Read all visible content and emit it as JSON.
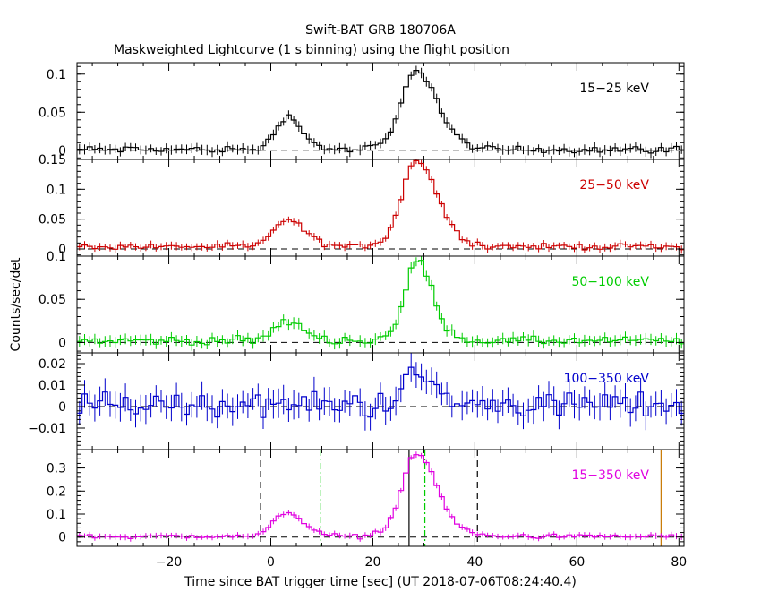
{
  "title": "Swift-BAT GRB 180706A",
  "subtitle": "Maskweighted Lightcurve (1 s binning) using the flight position",
  "colors": {
    "black": "#000000",
    "red": "#cc0000",
    "green": "#00cc00",
    "blue": "#0000cc",
    "magenta": "#e000e0",
    "orange": "#c87800"
  },
  "chart_data": {
    "type": "line",
    "xlabel": "Time since BAT trigger time [sec] (UT 2018-07-06T08:24:40.4)",
    "ylabel": "Counts/sec/det",
    "xlim": [
      -38,
      81
    ],
    "x_ticks": [
      -20,
      0,
      20,
      40,
      60,
      80
    ],
    "x_tick_labels": [
      "−20",
      "0",
      "20",
      "40",
      "60",
      "80"
    ],
    "panels": [
      {
        "name": "15−25 keV",
        "color": "#000000",
        "ylim": [
          -0.012,
          0.115
        ],
        "y_ticks": [
          0,
          0.05,
          0.1
        ],
        "y_tick_labels": [
          "0",
          "0.05",
          "0.1"
        ],
        "peaks": [
          {
            "center": 3,
            "width": 3.5,
            "height": 0.043
          },
          {
            "center": 28.5,
            "width": 4.5,
            "height": 0.1
          }
        ],
        "baseline": 0.001,
        "noise": 0.004,
        "err": 0.006,
        "pulse2_start": 20,
        "pulse2_end": 40
      },
      {
        "name": "25−50 keV",
        "color": "#cc0000",
        "ylim": [
          -0.012,
          0.15
        ],
        "y_ticks": [
          0,
          0.05,
          0.1,
          0.15
        ],
        "y_tick_labels": [
          "0",
          "0.05",
          "0.1",
          "0.15"
        ],
        "peaks": [
          {
            "center": 3,
            "width": 4,
            "height": 0.045
          },
          {
            "center": 28.5,
            "width": 4.5,
            "height": 0.138
          }
        ],
        "baseline": 0.004,
        "noise": 0.004,
        "err": 0.006,
        "pulse2_start": 20,
        "pulse2_end": 42
      },
      {
        "name": "50−100 keV",
        "color": "#00cc00",
        "ylim": [
          -0.012,
          0.1
        ],
        "y_ticks": [
          0,
          0.05,
          0.1
        ],
        "y_tick_labels": [
          "0",
          "0.05",
          "0.1"
        ],
        "peaks": [
          {
            "center": 3,
            "width": 4,
            "height": 0.022
          },
          {
            "center": 28.5,
            "width": 3.5,
            "height": 0.088
          }
        ],
        "baseline": 0.002,
        "noise": 0.004,
        "err": 0.006,
        "pulse2_start": 21,
        "pulse2_end": 38
      },
      {
        "name": "100−350 keV",
        "color": "#0000cc",
        "ylim": [
          -0.02,
          0.025
        ],
        "y_ticks": [
          -0.01,
          0,
          0.01,
          0.02
        ],
        "y_tick_labels": [
          "−0.01",
          "0",
          "0.01",
          "0.02"
        ],
        "peaks": [
          {
            "center": 28.5,
            "width": 3.5,
            "height": 0.014
          }
        ],
        "baseline": 0.001,
        "noise": 0.005,
        "err": 0.006,
        "pulse2_start": 22,
        "pulse2_end": 34
      },
      {
        "name": "15−350 keV",
        "color": "#e000e0",
        "ylim": [
          -0.04,
          0.38
        ],
        "y_ticks": [
          0,
          0.1,
          0.2,
          0.3
        ],
        "y_tick_labels": [
          "0",
          "0.1",
          "0.2",
          "0.3"
        ],
        "peaks": [
          {
            "center": 3,
            "width": 4,
            "height": 0.105
          },
          {
            "center": 28.5,
            "width": 4.5,
            "height": 0.34
          }
        ],
        "baseline": 0.003,
        "noise": 0.008,
        "err": 0.012,
        "pulse2_start": 20,
        "pulse2_end": 42,
        "vlines": [
          {
            "x": -2,
            "style": "dashed",
            "color": "#000000"
          },
          {
            "x": 40.5,
            "style": "dashed",
            "color": "#000000"
          },
          {
            "x": 9.8,
            "style": "dashdot",
            "color": "#00cc00"
          },
          {
            "x": 30.2,
            "style": "dashdot",
            "color": "#00cc00"
          },
          {
            "x": 27.1,
            "style": "solid",
            "color": "#000000"
          },
          {
            "x": 76.5,
            "style": "solid",
            "color": "#c87800"
          }
        ]
      }
    ]
  }
}
